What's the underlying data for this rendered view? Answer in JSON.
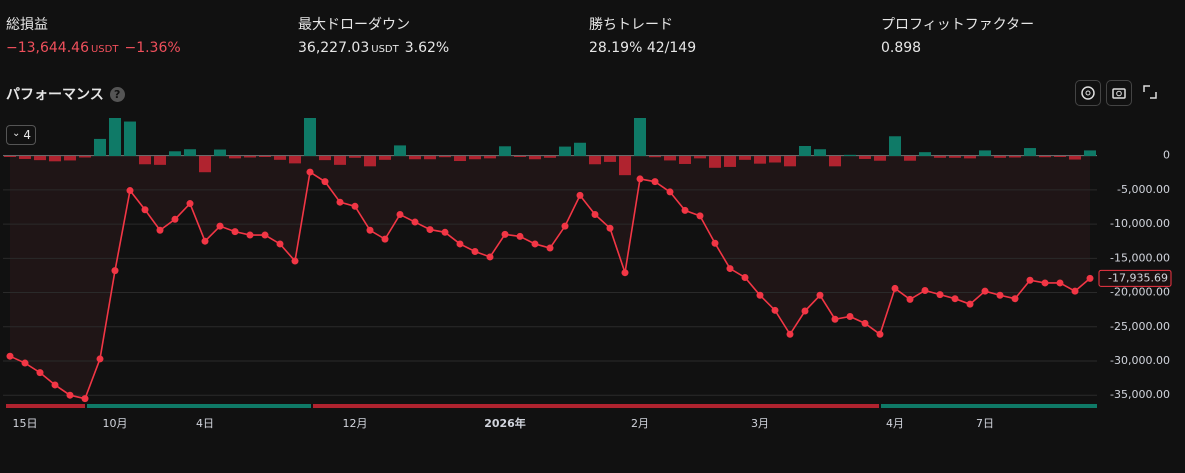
{
  "stats": [
    {
      "label": "総損益",
      "value": "−13,644.46",
      "unit": "USDT",
      "percent": "−1.36%"
    },
    {
      "label": "最大ドローダウン",
      "value": "36,227.03",
      "unit": "USDT",
      "percent": "3.62%"
    },
    {
      "label": "勝ちトレード",
      "value": "28.19%",
      "count": "42/149"
    },
    {
      "label": "プロフィットファクター",
      "value": "0.898"
    }
  ],
  "section_title": "パフォーマンス",
  "help": "?",
  "dropdown": "4",
  "chart_data": {
    "type": "line",
    "categories": [
      null,
      "15日",
      null,
      null,
      null,
      null,
      null,
      "10月",
      null,
      null,
      null,
      null,
      null,
      "4日",
      null,
      null,
      null,
      null,
      null,
      null,
      null,
      null,
      null,
      "12月",
      null,
      null,
      null,
      null,
      null,
      null,
      null,
      null,
      null,
      "2026年",
      null,
      null,
      null,
      null,
      null,
      null,
      null,
      null,
      "2月",
      null,
      null,
      null,
      null,
      null,
      null,
      null,
      "3月",
      null,
      null,
      null,
      null,
      null,
      null,
      null,
      null,
      "4月",
      null,
      null,
      null,
      null,
      null,
      "7日",
      null,
      null,
      null,
      null,
      null,
      null,
      null
    ],
    "ylim": [
      -35700,
      5500
    ],
    "yticks": [
      0,
      {
        "value": -5000,
        "label": "-5,000.00"
      },
      {
        "value": -10000,
        "label": "-10,000.00"
      },
      {
        "value": -15000,
        "label": "-15,000.00"
      },
      {
        "value": -20000,
        "label": "-20,000.00"
      },
      {
        "value": -25000,
        "label": "-25,000.00"
      },
      {
        "value": -30000,
        "label": "-30,000.00"
      },
      {
        "value": -35000,
        "label": "-35,000.00"
      }
    ],
    "y2lim": [
      -82800,
      12900
    ],
    "grid": true,
    "series": [
      {
        "type": "bar",
        "axis": "y2",
        "color": "#0f7a67",
        "color_down": "#b0232f",
        "values": [
          -300,
          -1000,
          -1400,
          -1800,
          -1500,
          -500,
          5800,
          12900,
          11700,
          -2800,
          -3000,
          1600,
          2300,
          -5500,
          2200,
          -800,
          -500,
          -200,
          -1300,
          -2500,
          12900,
          -1400,
          -3000,
          -600,
          -3500,
          -1300,
          3600,
          -1100,
          -1100,
          -400,
          -1700,
          -1100,
          -800,
          3300,
          -300,
          -1100,
          -600,
          3200,
          4500,
          -2800,
          -2000,
          -6500,
          12900,
          -400,
          -1500,
          -2700,
          -800,
          -4000,
          -3700,
          -1300,
          -2600,
          -2200,
          -3500,
          3400,
          2300,
          -3500,
          400,
          -1000,
          -1600,
          6700,
          -1600,
          1300,
          -600,
          -600,
          -800,
          1900,
          -600,
          -500,
          2700,
          -400,
          -200,
          -1200,
          1900
        ]
      },
      {
        "type": "line",
        "color": "#f23645",
        "values": [
          -29300,
          -30300,
          -31700,
          -33500,
          -35000,
          -35500,
          -29700,
          -16800,
          -5100,
          -7900,
          -10900,
          -9300,
          -7000,
          -12500,
          -10300,
          -11100,
          -11600,
          -11600,
          -12900,
          -15400,
          -2400,
          -3800,
          -6800,
          -7400,
          -10900,
          -12200,
          -8600,
          -9700,
          -10800,
          -11200,
          -12900,
          -14000,
          -14800,
          -11500,
          -11800,
          -12900,
          -13500,
          -10300,
          -5800,
          -8600,
          -10600,
          -17100,
          -3400,
          -3800,
          -5300,
          -8000,
          -8800,
          -12800,
          -16500,
          -17800,
          -20400,
          -22600,
          -26100,
          -22700,
          -20400,
          -23900,
          -23500,
          -24500,
          -26100,
          -19400,
          -21000,
          -19700,
          -20300,
          -20900,
          -21700,
          -19800,
          -20400,
          -20900,
          -18200,
          -18600,
          -18600,
          -19800,
          -17935.69
        ],
        "value_labels": [
          null,
          null,
          null,
          null,
          null,
          null,
          null,
          null,
          null,
          null,
          null,
          null,
          null,
          null,
          null,
          null,
          null,
          null,
          null,
          null,
          null,
          null,
          null,
          null,
          null,
          null,
          null,
          null,
          null,
          null,
          null,
          null,
          null,
          null,
          null,
          null,
          null,
          null,
          null,
          null,
          null,
          null,
          null,
          null,
          null,
          null,
          null,
          null,
          null,
          null,
          null,
          null,
          null,
          null,
          null,
          null,
          null,
          null,
          null,
          null,
          null,
          null,
          null,
          null,
          null,
          null,
          null,
          null,
          null,
          null,
          null,
          null,
          "-17,935.69"
        ]
      }
    ]
  }
}
